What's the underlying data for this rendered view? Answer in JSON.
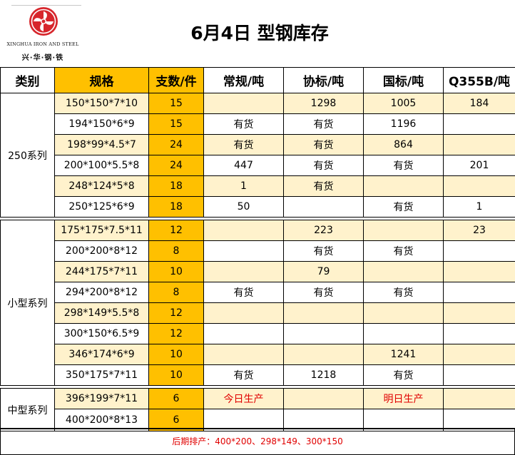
{
  "logo": {
    "name_en": "XINGHUA IRON AND STEEL",
    "name_cn": "兴·华·钢·铁",
    "brand_color": "#d7262c"
  },
  "title": "6月4日 型钢库存",
  "headers": {
    "category": "类别",
    "spec": "规格",
    "qty": "支数/件",
    "regular": "常规/吨",
    "association": "协标/吨",
    "national": "国标/吨",
    "q355b": "Q355B/吨"
  },
  "colors": {
    "header_fill": "#ffc000",
    "band_fill": "#fff2cc",
    "note_red": "#e00000"
  },
  "groups": [
    {
      "category": "250系列",
      "rows": [
        {
          "spec": "150*150*7*10",
          "qty": "15",
          "regular": "",
          "association": "1298",
          "national": "1005",
          "q355b": "184"
        },
        {
          "spec": "194*150*6*9",
          "qty": "15",
          "regular": "有货",
          "association": "有货",
          "national": "1196",
          "q355b": ""
        },
        {
          "spec": "198*99*4.5*7",
          "qty": "24",
          "regular": "有货",
          "association": "有货",
          "national": "864",
          "q355b": ""
        },
        {
          "spec": "200*100*5.5*8",
          "qty": "24",
          "regular": "447",
          "association": "有货",
          "national": "有货",
          "q355b": "201"
        },
        {
          "spec": "248*124*5*8",
          "qty": "18",
          "regular": "1",
          "association": "有货",
          "national": "",
          "q355b": ""
        },
        {
          "spec": "250*125*6*9",
          "qty": "18",
          "regular": "50",
          "association": "",
          "national": "有货",
          "q355b": "1"
        }
      ]
    },
    {
      "category": "小型系列",
      "rows": [
        {
          "spec": "175*175*7.5*11",
          "qty": "12",
          "regular": "",
          "association": "223",
          "national": "",
          "q355b": "23"
        },
        {
          "spec": "200*200*8*12",
          "qty": "8",
          "regular": "",
          "association": "有货",
          "national": "有货",
          "q355b": ""
        },
        {
          "spec": "244*175*7*11",
          "qty": "10",
          "regular": "",
          "association": "79",
          "national": "",
          "q355b": ""
        },
        {
          "spec": "294*200*8*12",
          "qty": "8",
          "regular": "有货",
          "association": "有货",
          "national": "有货",
          "q355b": ""
        },
        {
          "spec": "298*149*5.5*8",
          "qty": "12",
          "regular": "",
          "association": "",
          "national": "",
          "q355b": ""
        },
        {
          "spec": "300*150*6.5*9",
          "qty": "12",
          "regular": "",
          "association": "",
          "national": "",
          "q355b": ""
        },
        {
          "spec": "346*174*6*9",
          "qty": "10",
          "regular": "",
          "association": "",
          "national": "1241",
          "q355b": ""
        },
        {
          "spec": "350*175*7*11",
          "qty": "10",
          "regular": "有货",
          "association": "1218",
          "national": "有货",
          "q355b": ""
        }
      ]
    },
    {
      "category": "中型系列",
      "rows": [
        {
          "spec": "396*199*7*11",
          "qty": "6",
          "regular": "今日生产",
          "association": "",
          "national": "明日生产",
          "q355b": ""
        },
        {
          "spec": "400*200*8*13",
          "qty": "6",
          "regular": "",
          "association": "",
          "national": "",
          "q355b": ""
        }
      ]
    }
  ],
  "footer": "后期排产：400*200、298*149、300*150"
}
